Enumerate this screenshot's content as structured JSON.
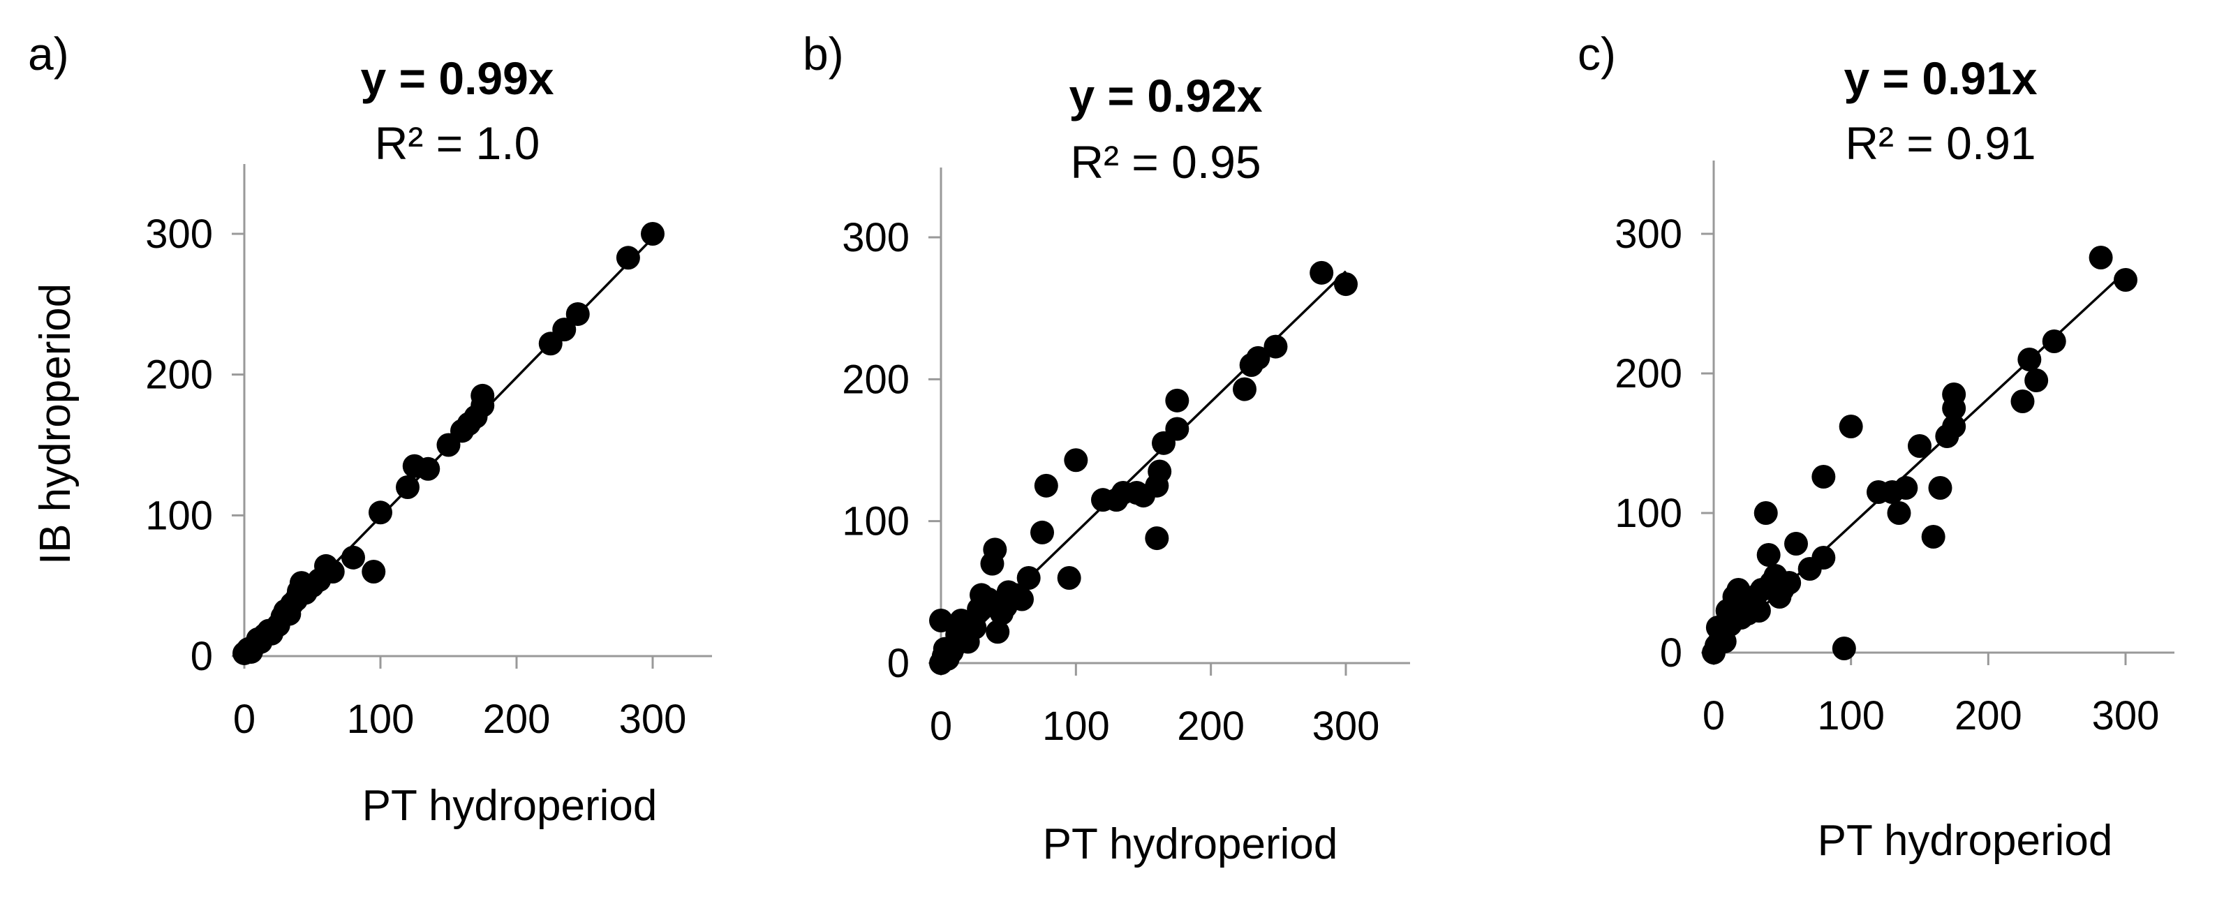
{
  "chart_data": [
    {
      "type": "scatter",
      "panel": "a)",
      "equation": "y = 0.99x",
      "r_squared": "R² = 1.0",
      "slope": 0.99,
      "xlabel": "PT hydroperiod",
      "ylabel": "IB hydroperiod",
      "xlim": [
        0,
        350
      ],
      "ylim": [
        0,
        350
      ],
      "xticks": [
        0,
        100,
        200,
        300
      ],
      "yticks": [
        0,
        100,
        200,
        300
      ],
      "points": [
        [
          0,
          2
        ],
        [
          3,
          5
        ],
        [
          5,
          3
        ],
        [
          8,
          8
        ],
        [
          10,
          12
        ],
        [
          12,
          10
        ],
        [
          15,
          15
        ],
        [
          18,
          18
        ],
        [
          20,
          16
        ],
        [
          25,
          22
        ],
        [
          28,
          28
        ],
        [
          30,
          32
        ],
        [
          33,
          30
        ],
        [
          35,
          37
        ],
        [
          38,
          40
        ],
        [
          40,
          46
        ],
        [
          42,
          52
        ],
        [
          45,
          45
        ],
        [
          50,
          50
        ],
        [
          55,
          54
        ],
        [
          60,
          64
        ],
        [
          65,
          60
        ],
        [
          80,
          70
        ],
        [
          95,
          60
        ],
        [
          100,
          102
        ],
        [
          120,
          120
        ],
        [
          125,
          135
        ],
        [
          135,
          133
        ],
        [
          150,
          150
        ],
        [
          160,
          160
        ],
        [
          165,
          165
        ],
        [
          170,
          170
        ],
        [
          175,
          178
        ],
        [
          175,
          185
        ],
        [
          225,
          222
        ],
        [
          235,
          232
        ],
        [
          245,
          243
        ],
        [
          282,
          283
        ],
        [
          300,
          300
        ]
      ]
    },
    {
      "type": "scatter",
      "panel": "b)",
      "equation": "y = 0.92x",
      "r_squared": "R² = 0.95",
      "slope": 0.92,
      "xlabel": "PT hydroperiod",
      "ylabel": "",
      "xlim": [
        0,
        350
      ],
      "ylim": [
        0,
        350
      ],
      "xticks": [
        0,
        100,
        200,
        300
      ],
      "yticks": [
        0,
        100,
        200,
        300
      ],
      "points": [
        [
          0,
          0
        ],
        [
          2,
          5
        ],
        [
          3,
          10
        ],
        [
          0,
          30
        ],
        [
          5,
          3
        ],
        [
          8,
          8
        ],
        [
          10,
          12
        ],
        [
          12,
          20
        ],
        [
          15,
          30
        ],
        [
          20,
          15
        ],
        [
          25,
          25
        ],
        [
          28,
          38
        ],
        [
          30,
          48
        ],
        [
          32,
          40
        ],
        [
          35,
          45
        ],
        [
          38,
          70
        ],
        [
          40,
          80
        ],
        [
          42,
          22
        ],
        [
          45,
          35
        ],
        [
          48,
          40
        ],
        [
          50,
          50
        ],
        [
          55,
          48
        ],
        [
          60,
          45
        ],
        [
          65,
          60
        ],
        [
          75,
          92
        ],
        [
          78,
          125
        ],
        [
          95,
          60
        ],
        [
          100,
          143
        ],
        [
          120,
          115
        ],
        [
          130,
          115
        ],
        [
          135,
          120
        ],
        [
          145,
          120
        ],
        [
          150,
          118
        ],
        [
          160,
          125
        ],
        [
          162,
          135
        ],
        [
          165,
          155
        ],
        [
          175,
          165
        ],
        [
          175,
          185
        ],
        [
          160,
          88
        ],
        [
          225,
          193
        ],
        [
          230,
          210
        ],
        [
          235,
          215
        ],
        [
          248,
          223
        ],
        [
          282,
          275
        ],
        [
          300,
          267
        ]
      ]
    },
    {
      "type": "scatter",
      "panel": "c)",
      "equation": "y = 0.91x",
      "r_squared": "R² = 0.91",
      "slope": 0.91,
      "xlabel": "PT hydroperiod",
      "ylabel": "",
      "xlim": [
        0,
        350
      ],
      "ylim": [
        0,
        350
      ],
      "xticks": [
        0,
        100,
        200,
        300
      ],
      "yticks": [
        0,
        100,
        200,
        300
      ],
      "points": [
        [
          0,
          0
        ],
        [
          2,
          5
        ],
        [
          3,
          18
        ],
        [
          5,
          10
        ],
        [
          8,
          8
        ],
        [
          10,
          30
        ],
        [
          12,
          20
        ],
        [
          15,
          40
        ],
        [
          18,
          45
        ],
        [
          20,
          25
        ],
        [
          25,
          28
        ],
        [
          28,
          35
        ],
        [
          30,
          40
        ],
        [
          33,
          30
        ],
        [
          35,
          45
        ],
        [
          38,
          100
        ],
        [
          40,
          70
        ],
        [
          42,
          50
        ],
        [
          45,
          55
        ],
        [
          48,
          40
        ],
        [
          50,
          45
        ],
        [
          55,
          50
        ],
        [
          60,
          78
        ],
        [
          70,
          60
        ],
        [
          80,
          68
        ],
        [
          80,
          126
        ],
        [
          95,
          3
        ],
        [
          100,
          162
        ],
        [
          120,
          115
        ],
        [
          130,
          115
        ],
        [
          135,
          100
        ],
        [
          140,
          118
        ],
        [
          150,
          148
        ],
        [
          160,
          83
        ],
        [
          165,
          118
        ],
        [
          170,
          155
        ],
        [
          175,
          175
        ],
        [
          175,
          185
        ],
        [
          175,
          162
        ],
        [
          225,
          180
        ],
        [
          230,
          210
        ],
        [
          235,
          195
        ],
        [
          248,
          223
        ],
        [
          282,
          283
        ],
        [
          300,
          267
        ]
      ]
    }
  ]
}
